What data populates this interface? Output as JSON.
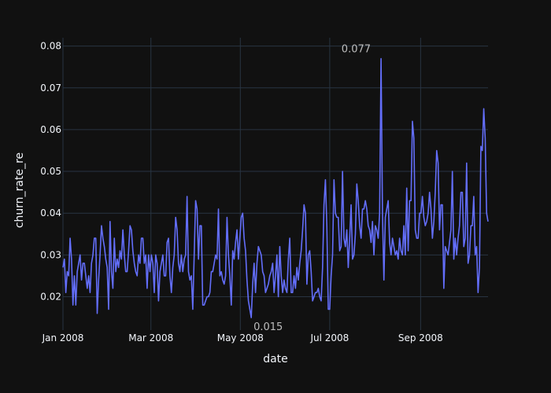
{
  "chart_data": {
    "type": "line",
    "xlabel": "date",
    "ylabel": "churn_rate_re",
    "x_start": "2008-01-01",
    "x_end": "2008-10-17",
    "ylim": [
      0.012,
      0.082
    ],
    "x_ticks": [
      {
        "date": "2008-01-01",
        "label": "Jan 2008"
      },
      {
        "date": "2008-03-01",
        "label": "Mar 2008"
      },
      {
        "date": "2008-05-01",
        "label": "May 2008"
      },
      {
        "date": "2008-07-01",
        "label": "Jul 2008"
      },
      {
        "date": "2008-09-01",
        "label": "Sep 2008"
      }
    ],
    "y_ticks": [
      {
        "value": 0.02,
        "label": "0.02"
      },
      {
        "value": 0.03,
        "label": "0.03"
      },
      {
        "value": 0.04,
        "label": "0.04"
      },
      {
        "value": 0.05,
        "label": "0.05"
      },
      {
        "value": 0.06,
        "label": "0.06"
      },
      {
        "value": 0.07,
        "label": "0.07"
      },
      {
        "value": 0.08,
        "label": "0.08"
      }
    ],
    "annotations": [
      {
        "date": "2008-07-19",
        "value": 0.077,
        "label": "0.077",
        "position": "above"
      },
      {
        "date": "2008-05-20",
        "value": 0.015,
        "label": "0.015",
        "position": "below"
      }
    ],
    "line_color": "#636efa",
    "grid": true,
    "series": [
      {
        "values": [
          0.027,
          0.029,
          0.021,
          0.026,
          0.025,
          0.034,
          0.029,
          0.018,
          0.025,
          0.018,
          0.026,
          0.028,
          0.03,
          0.024,
          0.028,
          0.028,
          0.025,
          0.022,
          0.025,
          0.021,
          0.028,
          0.03,
          0.034,
          0.034,
          0.016,
          0.024,
          0.03,
          0.037,
          0.034,
          0.032,
          0.029,
          0.027,
          0.017,
          0.038,
          0.026,
          0.022,
          0.034,
          0.026,
          0.029,
          0.027,
          0.031,
          0.029,
          0.036,
          0.03,
          0.026,
          0.026,
          0.031,
          0.037,
          0.036,
          0.031,
          0.028,
          0.026,
          0.025,
          0.03,
          0.028,
          0.034,
          0.034,
          0.028,
          0.03,
          0.022,
          0.03,
          0.026,
          0.03,
          0.028,
          0.021,
          0.03,
          0.028,
          0.019,
          0.026,
          0.028,
          0.03,
          0.025,
          0.025,
          0.033,
          0.034,
          0.025,
          0.021,
          0.027,
          0.03,
          0.039,
          0.036,
          0.028,
          0.026,
          0.03,
          0.026,
          0.029,
          0.03,
          0.044,
          0.026,
          0.024,
          0.025,
          0.017,
          0.03,
          0.043,
          0.041,
          0.029,
          0.037,
          0.037,
          0.018,
          0.018,
          0.019,
          0.02,
          0.02,
          0.021,
          0.026,
          0.026,
          0.028,
          0.03,
          0.029,
          0.041,
          0.025,
          0.026,
          0.024,
          0.023,
          0.025,
          0.039,
          0.03,
          0.025,
          0.018,
          0.031,
          0.029,
          0.033,
          0.036,
          0.029,
          0.034,
          0.039,
          0.04,
          0.034,
          0.031,
          0.024,
          0.019,
          0.017,
          0.015,
          0.023,
          0.028,
          0.021,
          0.028,
          0.032,
          0.031,
          0.03,
          0.026,
          0.025,
          0.021,
          0.022,
          0.023,
          0.025,
          0.026,
          0.028,
          0.021,
          0.025,
          0.03,
          0.02,
          0.032,
          0.025,
          0.021,
          0.024,
          0.022,
          0.021,
          0.029,
          0.034,
          0.021,
          0.021,
          0.025,
          0.022,
          0.027,
          0.024,
          0.028,
          0.031,
          0.036,
          0.042,
          0.04,
          0.023,
          0.03,
          0.031,
          0.026,
          0.019,
          0.02,
          0.021,
          0.021,
          0.022,
          0.02,
          0.019,
          0.027,
          0.042,
          0.048,
          0.037,
          0.017,
          0.017,
          0.025,
          0.03,
          0.048,
          0.04,
          0.039,
          0.039,
          0.031,
          0.032,
          0.05,
          0.034,
          0.032,
          0.036,
          0.027,
          0.034,
          0.042,
          0.029,
          0.03,
          0.035,
          0.047,
          0.043,
          0.037,
          0.034,
          0.041,
          0.041,
          0.043,
          0.041,
          0.037,
          0.036,
          0.033,
          0.038,
          0.03,
          0.037,
          0.036,
          0.034,
          0.04,
          0.077,
          0.04,
          0.024,
          0.039,
          0.041,
          0.043,
          0.033,
          0.03,
          0.034,
          0.032,
          0.03,
          0.031,
          0.029,
          0.034,
          0.031,
          0.03,
          0.037,
          0.03,
          0.046,
          0.031,
          0.043,
          0.043,
          0.062,
          0.058,
          0.036,
          0.034,
          0.034,
          0.04,
          0.04,
          0.044,
          0.039,
          0.037,
          0.038,
          0.04,
          0.045,
          0.041,
          0.034,
          0.038,
          0.045,
          0.055,
          0.052,
          0.036,
          0.042,
          0.042,
          0.022,
          0.032,
          0.031,
          0.03,
          0.033,
          0.036,
          0.05,
          0.029,
          0.034,
          0.03,
          0.034,
          0.037,
          0.045,
          0.045,
          0.032,
          0.034,
          0.052,
          0.028,
          0.03,
          0.037,
          0.037,
          0.044,
          0.03,
          0.032,
          0.021,
          0.027,
          0.056,
          0.055,
          0.065,
          0.058,
          0.04,
          0.038
        ]
      }
    ]
  }
}
